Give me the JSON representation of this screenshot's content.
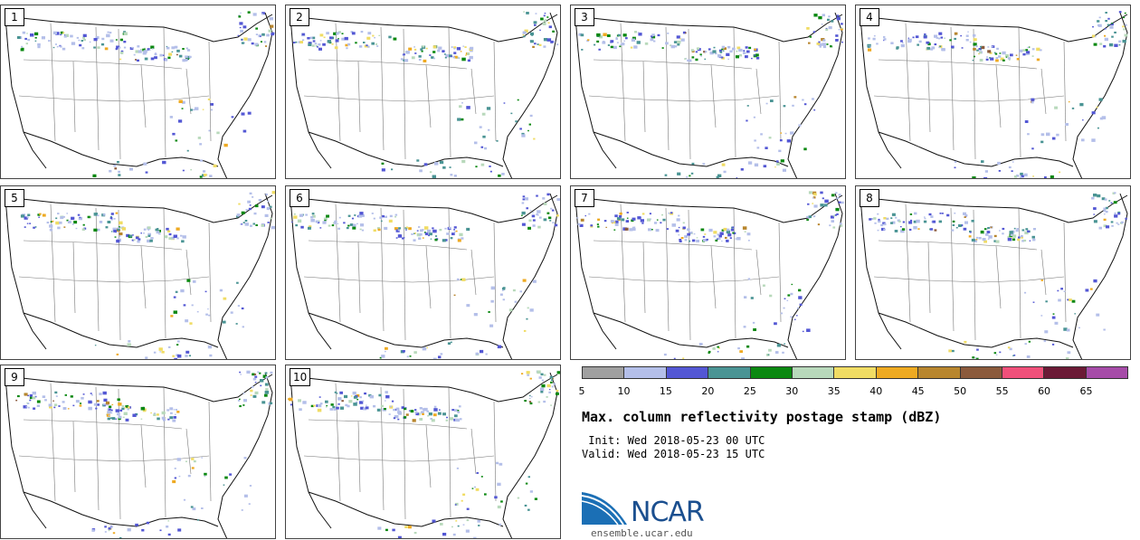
{
  "panels": [
    {
      "label": "1"
    },
    {
      "label": "2"
    },
    {
      "label": "3"
    },
    {
      "label": "4"
    },
    {
      "label": "5"
    },
    {
      "label": "6"
    },
    {
      "label": "7"
    },
    {
      "label": "8"
    },
    {
      "label": "9"
    },
    {
      "label": "10"
    }
  ],
  "colorbar": {
    "colors": [
      "#a0a0a0",
      "#b4bfe9",
      "#5357d4",
      "#4a9494",
      "#0b8811",
      "#b8d9bb",
      "#f0dc64",
      "#eeaa22",
      "#b8862e",
      "#8b5a3c",
      "#f0507a",
      "#6b1a36",
      "#a64ca8"
    ],
    "ticks": [
      "5",
      "10",
      "15",
      "20",
      "25",
      "30",
      "35",
      "40",
      "45",
      "50",
      "55",
      "60",
      "65"
    ]
  },
  "title": "Max. column reflectivity postage stamp (dBZ)",
  "init": " Init: Wed 2018-05-23 00 UTC",
  "valid": "Valid: Wed 2018-05-23 15 UTC",
  "logo": {
    "text": "NCAR",
    "site": "ensemble.ucar.edu",
    "color": "#1b4f8f"
  }
}
